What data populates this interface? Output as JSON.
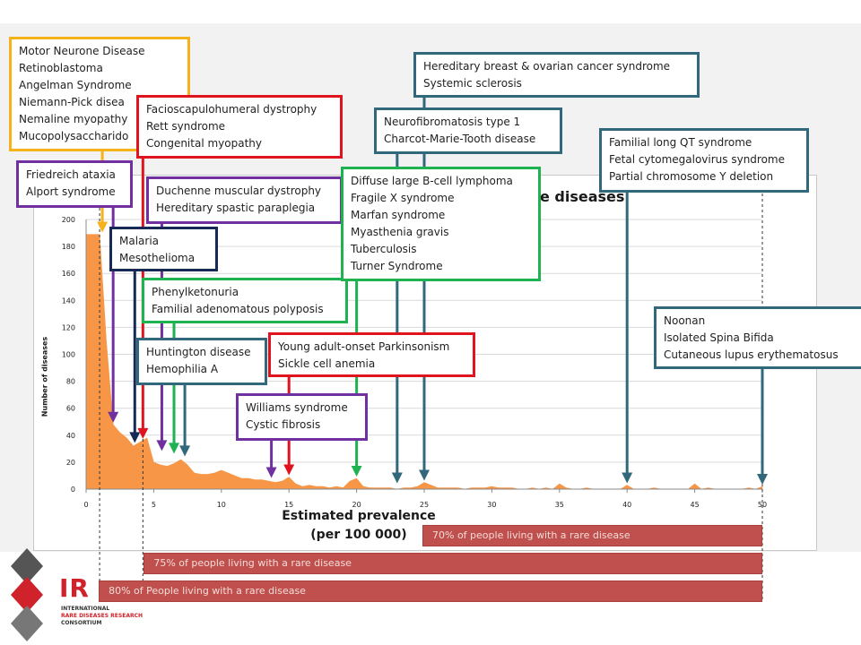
{
  "chart_data": {
    "type": "area",
    "title": "e diseases",
    "xlabel": "Estimated prevalence\n(per 100 000)",
    "ylabel": "Number of diseases",
    "xlim": [
      0,
      50
    ],
    "ylim": [
      0,
      200
    ],
    "x_ticks": [
      "0",
      "5",
      "10",
      "15",
      "20",
      "25",
      "30",
      "35",
      "40",
      "45",
      "50"
    ],
    "y_ticks": [
      "0",
      "20",
      "40",
      "60",
      "80",
      "100",
      "120",
      "140",
      "160",
      "180",
      "200"
    ],
    "color": "#f79646",
    "x": [
      0,
      0.5,
      1,
      1.5,
      2,
      2.5,
      3,
      3.5,
      4,
      4.5,
      5,
      5.5,
      6,
      6.5,
      7,
      7.5,
      8,
      8.5,
      9,
      9.5,
      10,
      10.5,
      11,
      11.5,
      12,
      12.5,
      13,
      13.5,
      14,
      14.5,
      15,
      15.5,
      16,
      16.5,
      17,
      17.5,
      18,
      18.5,
      19,
      19.5,
      20,
      20.5,
      21,
      21.5,
      22,
      22.5,
      23,
      23.5,
      24,
      24.5,
      25,
      25.5,
      26,
      26.5,
      27,
      27.5,
      28,
      28.5,
      29,
      29.5,
      30,
      30.5,
      31,
      31.5,
      32,
      32.5,
      33,
      33.5,
      34,
      34.5,
      35,
      35.5,
      36,
      36.5,
      37,
      37.5,
      38,
      38.5,
      39,
      39.5,
      40,
      40.5,
      41,
      41.5,
      42,
      42.5,
      43,
      43.5,
      44,
      44.5,
      45,
      45.5,
      46,
      46.5,
      47,
      47.5,
      48,
      48.5,
      49,
      49.5,
      50
    ],
    "y": [
      189,
      189,
      189,
      110,
      48,
      42,
      38,
      32,
      35,
      38,
      20,
      18,
      17,
      19,
      22,
      18,
      12,
      11,
      11,
      12,
      14,
      12,
      10,
      8,
      8,
      7,
      7,
      6,
      5,
      6,
      9,
      4,
      2,
      3,
      2,
      2,
      1,
      2,
      1,
      6,
      8,
      2,
      1,
      1,
      1,
      1,
      0,
      1,
      1,
      2,
      5,
      3,
      1,
      1,
      1,
      1,
      0,
      1,
      1,
      1,
      2,
      1,
      1,
      1,
      0,
      0,
      1,
      0,
      1,
      0,
      4,
      1,
      0,
      0,
      1,
      0,
      0,
      0,
      0,
      0,
      3,
      0,
      0,
      0,
      1,
      0,
      0,
      0,
      0,
      0,
      4,
      0,
      1,
      0,
      0,
      0,
      0,
      0,
      1,
      0,
      2
    ]
  },
  "annotations": [
    {
      "lines": [
        "Motor Neurone Disease",
        "Retinoblastoma",
        "Angelman Syndrome",
        "Niemann-Pick disea",
        "Nemaline myopathy",
        "Mucopolysaccharido"
      ],
      "color": "#f5b21b",
      "arrow_x": 1.2,
      "arrow_y": 189
    },
    {
      "lines": [
        "Friedreich ataxia",
        "Alport syndrome"
      ],
      "color": "#7030a0",
      "arrow_x": 2.0,
      "arrow_y": 48
    },
    {
      "lines": [
        "Facioscapulohumeral dystrophy",
        "Rett syndrome",
        "Congenital myopathy"
      ],
      "color": "#e0141e",
      "arrow_x": 4.2,
      "arrow_y": 36
    },
    {
      "lines": [
        "Duchenne muscular dystrophy",
        "Hereditary spastic paraplegia"
      ],
      "color": "#7030a0",
      "arrow_x": 5.6,
      "arrow_y": 27
    },
    {
      "lines": [
        "Malaria",
        "Mesothelioma"
      ],
      "color": "#172a55",
      "arrow_x": 3.6,
      "arrow_y": 33
    },
    {
      "lines": [
        "Phenylketonuria",
        "Familial adenomatous polyposis"
      ],
      "color": "#1fb251",
      "arrow_x": 6.5,
      "arrow_y": 25
    },
    {
      "lines": [
        "Huntington disease",
        "Hemophilia A"
      ],
      "color": "#31687b",
      "arrow_x": 7.3,
      "arrow_y": 23
    },
    {
      "lines": [
        "Young adult-onset Parkinsonism",
        "Sickle cell anemia"
      ],
      "color": "#e0141e",
      "arrow_x": 15.0,
      "arrow_y": 9
    },
    {
      "lines": [
        "Williams syndrome",
        "Cystic fibrosis"
      ],
      "color": "#7030a0",
      "arrow_x": 13.7,
      "arrow_y": 7
    },
    {
      "lines": [
        "Diffuse large B-cell lymphoma",
        "Fragile X syndrome",
        "Marfan syndrome",
        "Myasthenia gravis",
        "Tuberculosis",
        "Turner Syndrome"
      ],
      "color": "#1fb251",
      "arrow_x": 20.0,
      "arrow_y": 8
    },
    {
      "lines": [
        "Neurofibromatosis type 1",
        "Charcot-Marie-Tooth disease"
      ],
      "color": "#31687b",
      "arrow_x": 23.0,
      "arrow_y": 3
    },
    {
      "lines": [
        "Hereditary breast & ovarian cancer syndrome",
        "Systemic sclerosis"
      ],
      "color": "#31687b",
      "arrow_x": 25.0,
      "arrow_y": 5
    },
    {
      "lines": [
        "Familial long QT syndrome",
        "Fetal cytomegalovirus syndrome",
        "Partial chromosome Y deletion"
      ],
      "color": "#31687b",
      "arrow_x": 40.0,
      "arrow_y": 3
    },
    {
      "lines": [
        "Noonan",
        "Isolated Spina Bifida",
        "Cutaneous lupus erythematosus"
      ],
      "color": "#31687b",
      "arrow_x": 50.0,
      "arrow_y": 2
    }
  ],
  "prevalence_bars": [
    {
      "label": "70% of people living with a rare disease",
      "from_x": 25,
      "to_x": 50
    },
    {
      "label": "75% of people living with a rare disease",
      "from_x": 4.2,
      "to_x": 50
    },
    {
      "label": "80% of People living with a rare disease",
      "from_x": 1.0,
      "to_x": 50
    }
  ],
  "logo": {
    "big": "IR",
    "line1": "INTERNATIONAL",
    "line2": "RARE DISEASES RESEARCH",
    "line3": "CONSORTIUM"
  }
}
